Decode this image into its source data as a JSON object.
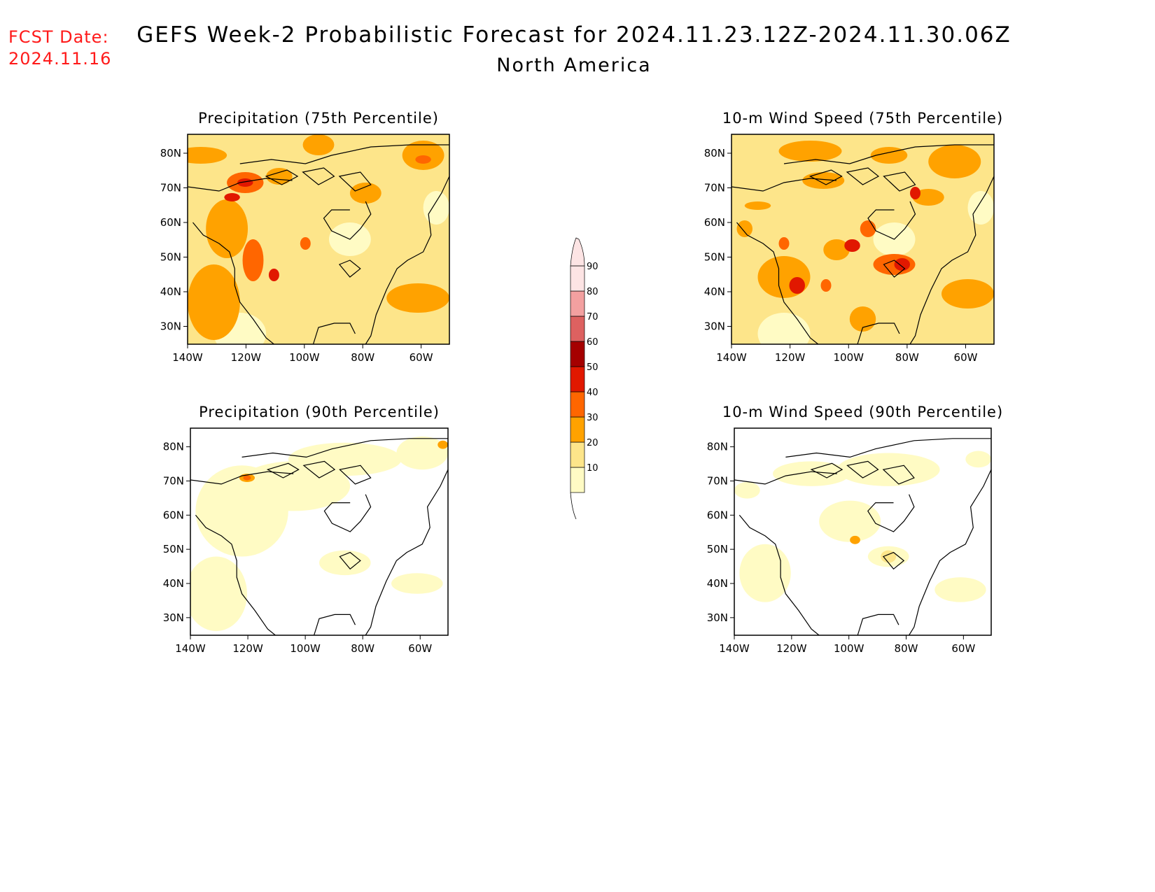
{
  "fcst": {
    "line1": "FCST Date:",
    "line2": "2024.11.16"
  },
  "title": "GEFS Week-2 Probabilistic Forecast for 2024.11.23.12Z-2024.11.30.06Z",
  "subtitle": "North America",
  "colors": {
    "bins": [
      "#fffbc4",
      "#fde58a",
      "#ffa200",
      "#ff6600",
      "#e11800",
      "#a50000",
      "#dd6160",
      "#f3a0a0",
      "#fde4e4"
    ],
    "coast": "#000000"
  },
  "colorbar": {
    "levels": [
      "10",
      "20",
      "30",
      "40",
      "50",
      "60",
      "70",
      "80",
      "90"
    ]
  },
  "axes": {
    "lat_labels": [
      "80N",
      "70N",
      "60N",
      "50N",
      "40N",
      "30N"
    ],
    "lon_labels": [
      "140W",
      "120W",
      "100W",
      "80W",
      "60W"
    ]
  },
  "panels": [
    {
      "title": "Precipitation (75th Percentile)",
      "background_bin": 1
    },
    {
      "title": "10-m Wind Speed (75th Percentile)",
      "background_bin": 1
    },
    {
      "title": "Precipitation (90th Percentile)",
      "background_bin": -1
    },
    {
      "title": "10-m Wind Speed (90th Percentile)",
      "background_bin": -1
    }
  ]
}
